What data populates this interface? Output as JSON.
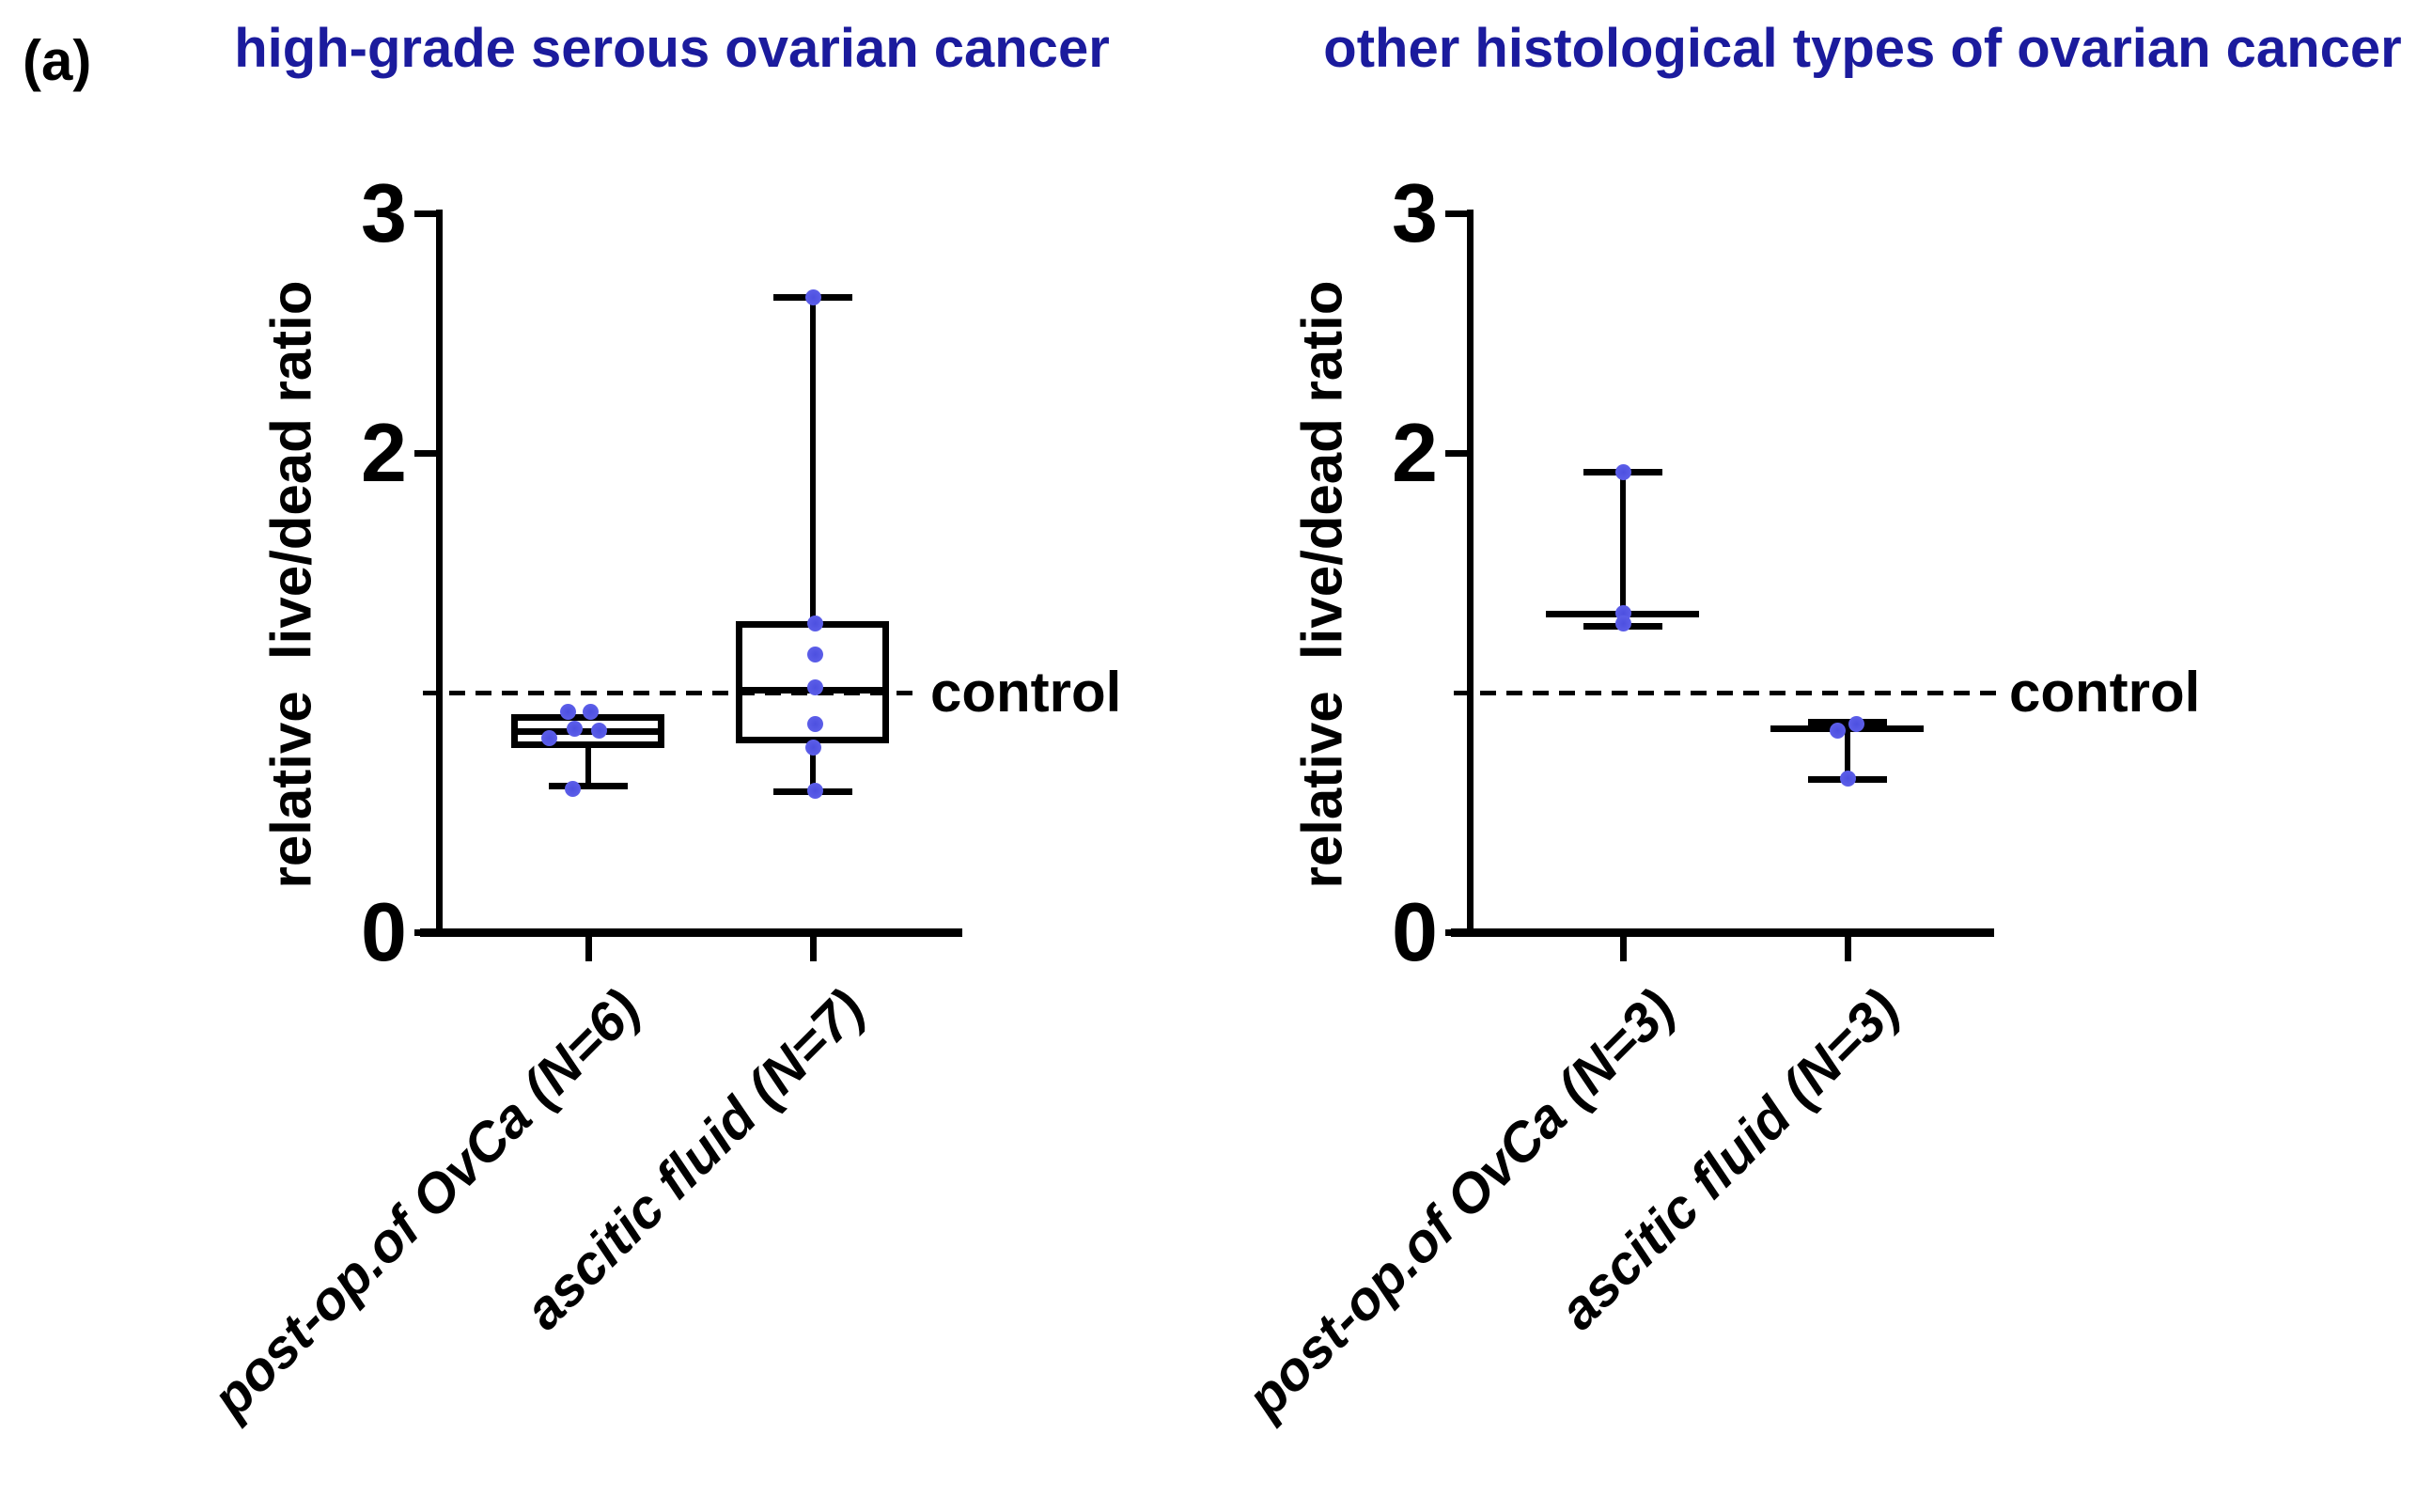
{
  "figure_label": "(a)",
  "colors": {
    "title": "#1b1b9d",
    "point_fill": "#5d5fe9",
    "point_core": "#4d50e0",
    "line": "#000000",
    "background": "#ffffff"
  },
  "chart_data": [
    {
      "type": "box",
      "title": "high-grade serous ovarian cancer",
      "ylabel": "relative  live/dead ratio",
      "xlabel": "",
      "ylim": [
        0,
        3
      ],
      "yticks": [
        3,
        2,
        0
      ],
      "grid": false,
      "legend": "none",
      "control_line": {
        "value": 1.0,
        "label": "control",
        "style": "dashed"
      },
      "categories": [
        "post-op.of OvCa (N=6)",
        "ascitic fluid (N=7)"
      ],
      "groups": [
        {
          "category": "post-op.of OvCa (N=6)",
          "n": 6,
          "box": {
            "q1": 0.77,
            "median": 0.84,
            "q3": 0.91,
            "whisker_low": 0.61,
            "whisker_high": null
          },
          "points": [
            {
              "value": 0.92,
              "dx": -22
            },
            {
              "value": 0.92,
              "dx": 2
            },
            {
              "value": 0.85,
              "dx": -15
            },
            {
              "value": 0.84,
              "dx": 11
            },
            {
              "value": 0.81,
              "dx": -42
            },
            {
              "value": 0.6,
              "dx": -17
            }
          ]
        },
        {
          "category": "ascitic fluid (N=7)",
          "n": 7,
          "box": {
            "q1": 0.79,
            "median": 1.01,
            "q3": 1.3,
            "whisker_low": 0.59,
            "whisker_high": 2.65
          },
          "points": [
            {
              "value": 2.65,
              "dx": 0
            },
            {
              "value": 1.29,
              "dx": 2
            },
            {
              "value": 1.16,
              "dx": 2
            },
            {
              "value": 1.02,
              "dx": 2
            },
            {
              "value": 0.87,
              "dx": 2
            },
            {
              "value": 0.77,
              "dx": 0
            },
            {
              "value": 0.59,
              "dx": 2
            }
          ]
        }
      ]
    },
    {
      "type": "box",
      "title": "other histological types of ovarian cancer",
      "ylabel": "relative  live/dead ratio",
      "xlabel": "",
      "ylim": [
        0,
        3
      ],
      "yticks": [
        3,
        2,
        0
      ],
      "grid": false,
      "legend": "none",
      "control_line": {
        "value": 1.0,
        "label": "control",
        "style": "dashed"
      },
      "categories": [
        "post-op.of OvCa (N=3)",
        "ascitic fluid (N=3)"
      ],
      "groups": [
        {
          "category": "post-op.of OvCa (N=3)",
          "n": 3,
          "box": {
            "q1": 1.33,
            "median": 1.33,
            "q3": 1.33,
            "whisker_low": 1.28,
            "whisker_high": 1.92
          },
          "points": [
            {
              "value": 1.92,
              "dx": 0
            },
            {
              "value": 1.33,
              "dx": 0
            },
            {
              "value": 1.29,
              "dx": 0
            }
          ]
        },
        {
          "category": "ascitic fluid (N=3)",
          "n": 3,
          "box": {
            "q1": 0.85,
            "median": 0.85,
            "q3": 0.87,
            "whisker_low": 0.64,
            "whisker_high": null
          },
          "points": [
            {
              "value": 0.84,
              "dx": -11
            },
            {
              "value": 0.87,
              "dx": 9
            },
            {
              "value": 0.64,
              "dx": 0
            }
          ]
        }
      ]
    }
  ]
}
